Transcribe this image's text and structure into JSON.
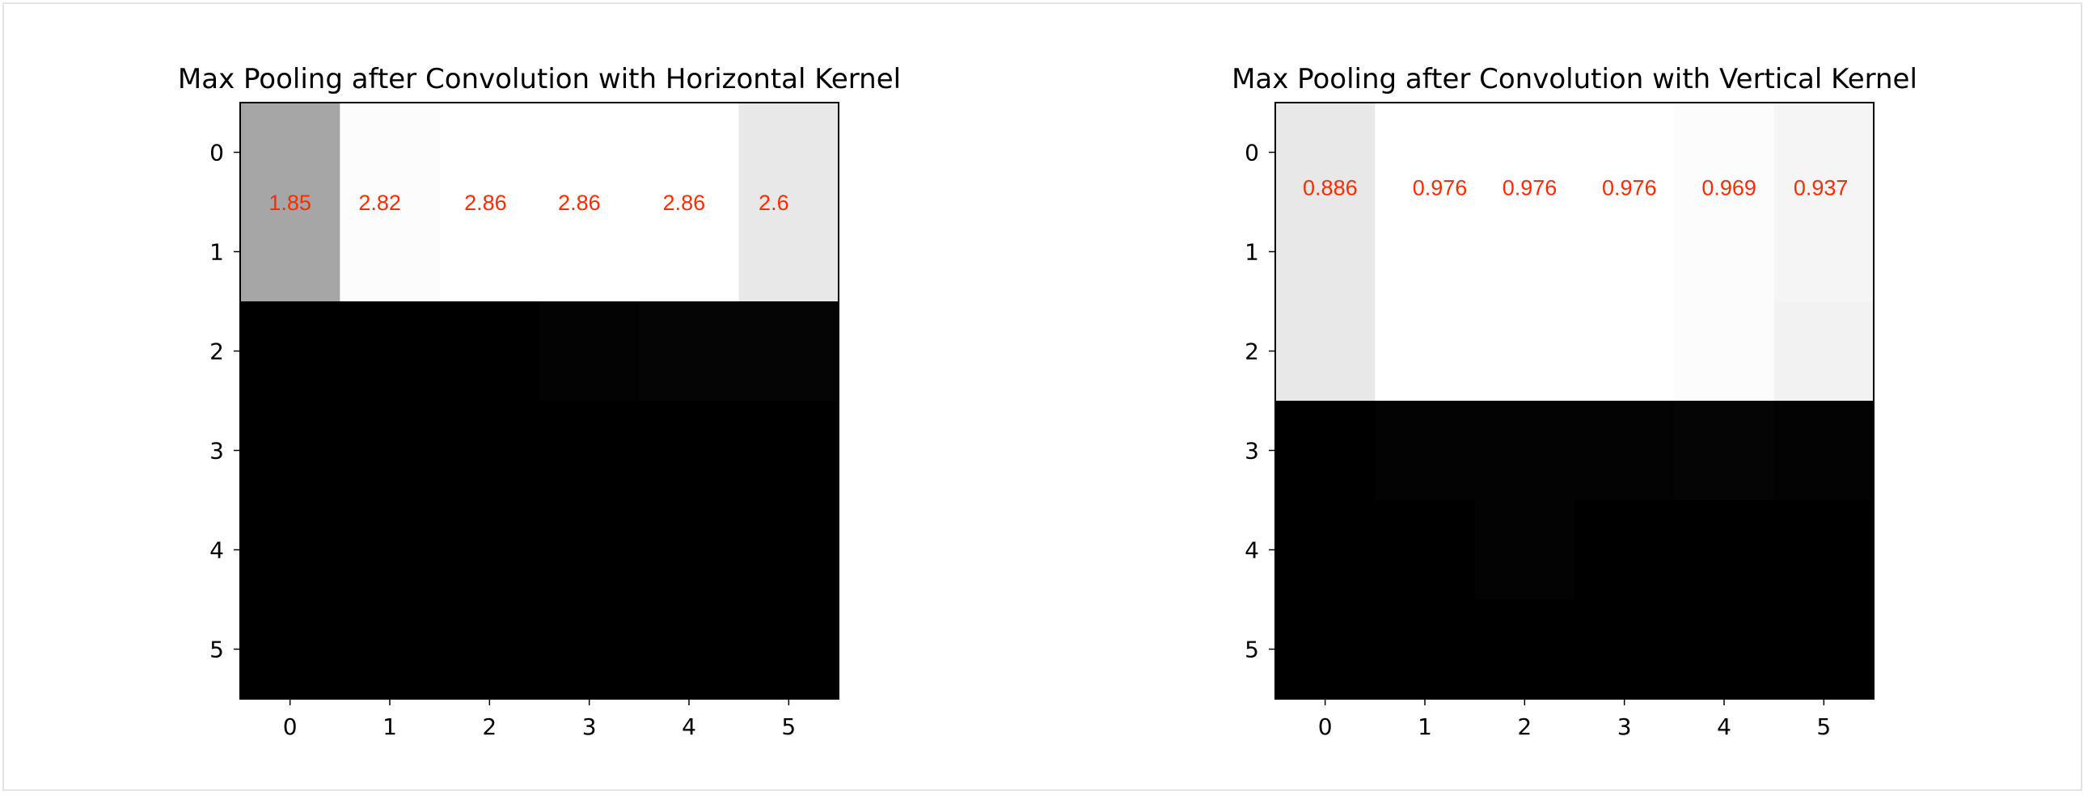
{
  "chart_data": [
    {
      "type": "heatmap",
      "title": "Max Pooling after Convolution with Horizontal Kernel",
      "colormap": "gray",
      "xticks": [
        "0",
        "1",
        "2",
        "3",
        "4",
        "5"
      ],
      "yticks": [
        "0",
        "1",
        "2",
        "3",
        "4",
        "5"
      ],
      "intensity": [
        [
          0.65,
          0.99,
          1.0,
          1.0,
          1.0,
          0.91
        ],
        [
          0.65,
          0.99,
          1.0,
          1.0,
          1.0,
          0.91
        ],
        [
          0.0,
          0.0,
          0.0,
          0.01,
          0.02,
          0.02
        ],
        [
          0.0,
          0.0,
          0.0,
          0.0,
          0.0,
          0.0
        ],
        [
          0.0,
          0.0,
          0.0,
          0.0,
          0.0,
          0.0
        ],
        [
          0.0,
          0.0,
          0.0,
          0.0,
          0.0,
          0.0
        ]
      ],
      "labels": [
        {
          "x": 0,
          "y": 0.5,
          "text": "1.85"
        },
        {
          "x": 0.9,
          "y": 0.5,
          "text": "2.82"
        },
        {
          "x": 1.96,
          "y": 0.5,
          "text": "2.86"
        },
        {
          "x": 2.9,
          "y": 0.5,
          "text": "2.86"
        },
        {
          "x": 3.95,
          "y": 0.5,
          "text": "2.86"
        },
        {
          "x": 4.85,
          "y": 0.5,
          "text": "2.6"
        }
      ],
      "label_color": "#ff2a00"
    },
    {
      "type": "heatmap",
      "title": "Max Pooling after Convolution with Vertical Kernel",
      "colormap": "gray",
      "xticks": [
        "0",
        "1",
        "2",
        "3",
        "4",
        "5"
      ],
      "yticks": [
        "0",
        "1",
        "2",
        "3",
        "4",
        "5"
      ],
      "intensity": [
        [
          0.91,
          1.0,
          1.0,
          1.0,
          0.99,
          0.96
        ],
        [
          0.91,
          1.0,
          1.0,
          1.0,
          0.99,
          0.96
        ],
        [
          0.91,
          1.0,
          1.0,
          1.0,
          0.99,
          0.95
        ],
        [
          0.0,
          0.01,
          0.01,
          0.01,
          0.02,
          0.01
        ],
        [
          0.0,
          0.0,
          0.01,
          0.0,
          0.0,
          0.0
        ],
        [
          0.0,
          0.0,
          0.0,
          0.0,
          0.0,
          0.0
        ]
      ],
      "labels": [
        {
          "x": 0.05,
          "y": 0.35,
          "text": "0.886"
        },
        {
          "x": 1.15,
          "y": 0.35,
          "text": "0.976"
        },
        {
          "x": 2.05,
          "y": 0.35,
          "text": "0.976"
        },
        {
          "x": 3.05,
          "y": 0.35,
          "text": "0.976"
        },
        {
          "x": 4.05,
          "y": 0.35,
          "text": "0.969"
        },
        {
          "x": 4.97,
          "y": 0.35,
          "text": "0.937"
        }
      ],
      "label_color": "#ff2a00"
    }
  ]
}
